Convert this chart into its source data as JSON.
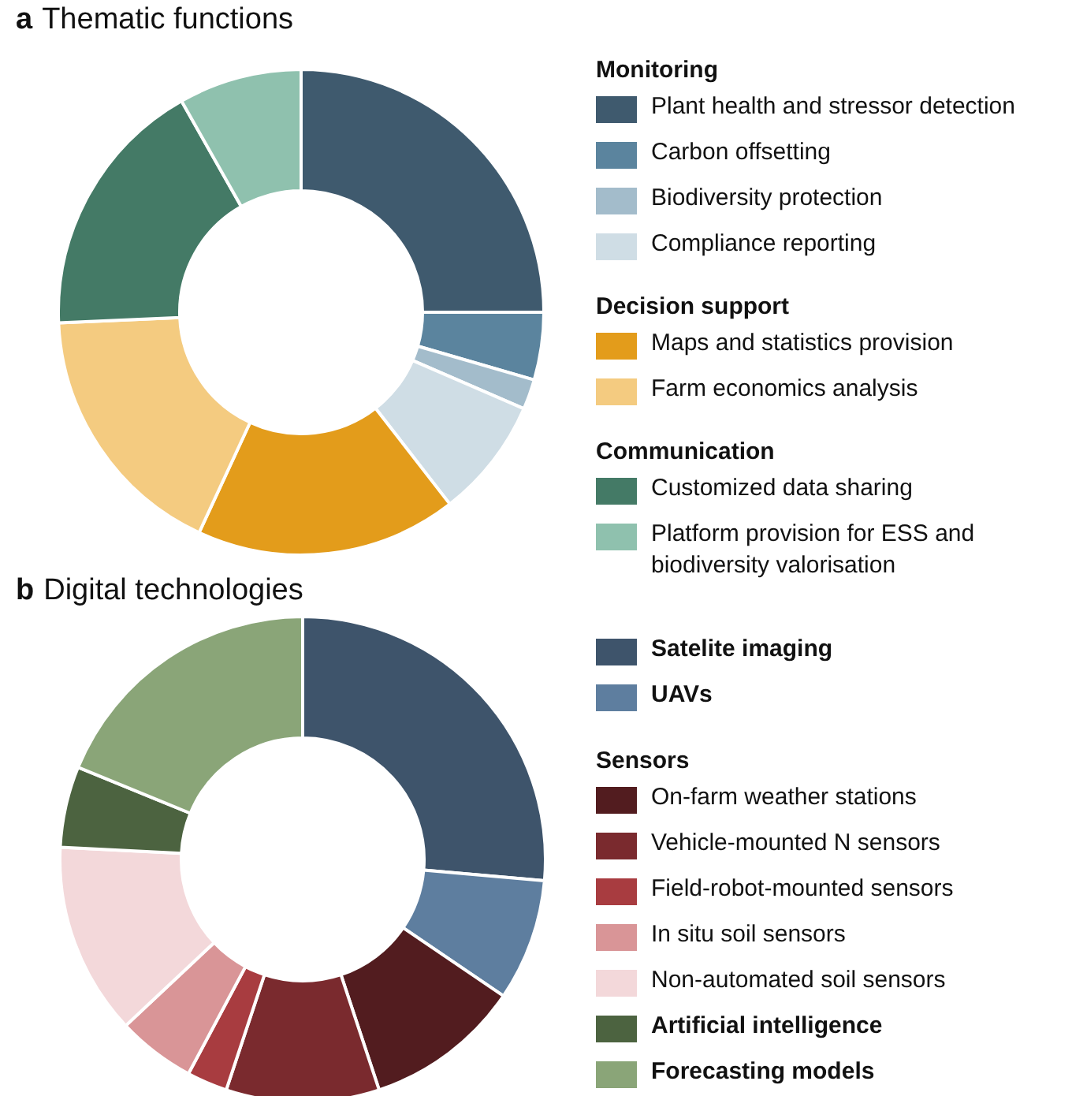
{
  "chart_data": [
    {
      "type": "donut",
      "title": "a Thematic functions",
      "legend": "right",
      "categories": [
        "Plant health and stressor detection",
        "Carbon offsetting",
        "Biodiversity protection",
        "Compliance reporting",
        "Maps and statistics provision",
        "Farm economics analysis",
        "Customized data sharing",
        "Platform provision for ESS and biodiversity valorisation"
      ],
      "values": [
        25,
        4.5,
        2,
        8,
        17.4,
        17.4,
        17.5,
        8.2
      ],
      "colors": [
        "#3f5a6e",
        "#5b849e",
        "#a3bccb",
        "#cfdde5",
        "#e39c1b",
        "#f4cb80",
        "#447a66",
        "#8fc1ae"
      ],
      "annotations": [
        "Monitoring",
        "Decision support",
        "Communication"
      ]
    },
    {
      "type": "donut",
      "title": "b Digital technologies",
      "legend": "right",
      "categories": [
        "Satelite imaging",
        "UAVs",
        "On-farm weather stations",
        "Vehicle-mounted N sensors",
        "Field-robot-mounted sensors",
        "In situ soil sensors",
        "Non-automated soil sensors",
        "Artificial intelligence",
        "Forecasting models"
      ],
      "values": [
        26.4,
        8.1,
        10.4,
        10.2,
        2.7,
        5.2,
        12.8,
        5.4,
        18.8
      ],
      "colors": [
        "#3e546b",
        "#5e7e9f",
        "#521c1f",
        "#7a2a2e",
        "#a83c40",
        "#d99597",
        "#f3d8da",
        "#4c6340",
        "#8aa578"
      ],
      "annotations": [
        "Sensors"
      ]
    }
  ]
}
